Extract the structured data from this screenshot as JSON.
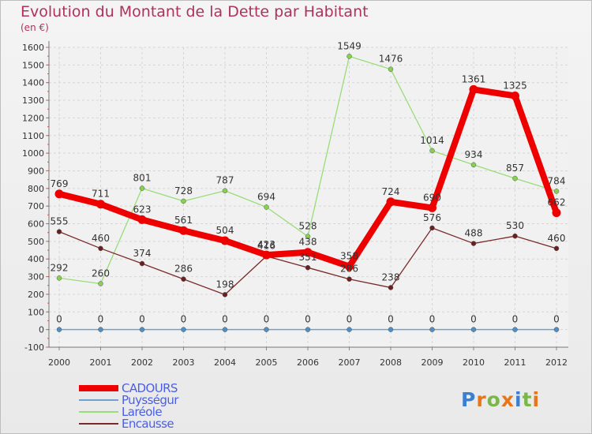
{
  "title": "Evolution du Montant de la Dette par Habitant",
  "subtitle": "(en €)",
  "logo": {
    "letters": [
      "P",
      "r",
      "o",
      "x",
      "i",
      "t",
      "i"
    ],
    "colors": [
      "#3a7fd0",
      "#e8751a",
      "#7ab648",
      "#e8751a",
      "#3a7fd0",
      "#7ab648",
      "#e8751a"
    ]
  },
  "chart_data": {
    "type": "line",
    "x": [
      "2000",
      "2001",
      "2002",
      "2003",
      "2004",
      "2005",
      "2006",
      "2007",
      "2008",
      "2009",
      "2010",
      "2011",
      "2012"
    ],
    "ylim": [
      -100,
      1600
    ],
    "yticks": [
      "-100",
      "0",
      "100",
      "200",
      "300",
      "400",
      "500",
      "600",
      "700",
      "800",
      "900",
      "1000",
      "1100",
      "1200",
      "1300",
      "1400",
      "1500",
      "1600"
    ],
    "grid": true,
    "legend_position": "bottom-left",
    "series": [
      {
        "name": "CADOURS",
        "color": "#ee0000",
        "width": 8,
        "values": [
          769,
          711,
          623,
          561,
          504,
          423,
          438,
          358,
          724,
          690,
          1361,
          1325,
          662
        ],
        "labels": [
          "769",
          "711",
          "623",
          "561",
          "504",
          "423",
          "438",
          "358",
          "724",
          "690",
          "1361",
          "1325",
          "662"
        ]
      },
      {
        "name": "Puysségur",
        "color": "#6fa3cc",
        "width": 1.5,
        "values": [
          0,
          0,
          0,
          0,
          0,
          0,
          0,
          0,
          0,
          0,
          0,
          0,
          0
        ],
        "labels": [
          "0",
          "0",
          "0",
          "0",
          "0",
          "0",
          "0",
          "0",
          "0",
          "0",
          "0",
          "0",
          "0"
        ]
      },
      {
        "name": "Laréole",
        "color": "#99dd77",
        "width": 1.3,
        "values": [
          292,
          260,
          801,
          728,
          787,
          694,
          528,
          1549,
          1476,
          1014,
          934,
          857,
          784
        ],
        "labels": [
          "292",
          "260",
          "801",
          "728",
          "787",
          "694",
          "528",
          "1549",
          "1476",
          "1014",
          "934",
          "857",
          "784"
        ]
      },
      {
        "name": "Encausse",
        "color": "#7a2a2a",
        "width": 1.3,
        "values": [
          555,
          460,
          374,
          286,
          198,
          416,
          351,
          286,
          238,
          576,
          488,
          530,
          460
        ],
        "labels": [
          "555",
          "460",
          "374",
          "286",
          "198",
          "416",
          "351",
          "286",
          "238",
          "576",
          "488",
          "530",
          "460"
        ]
      }
    ]
  }
}
